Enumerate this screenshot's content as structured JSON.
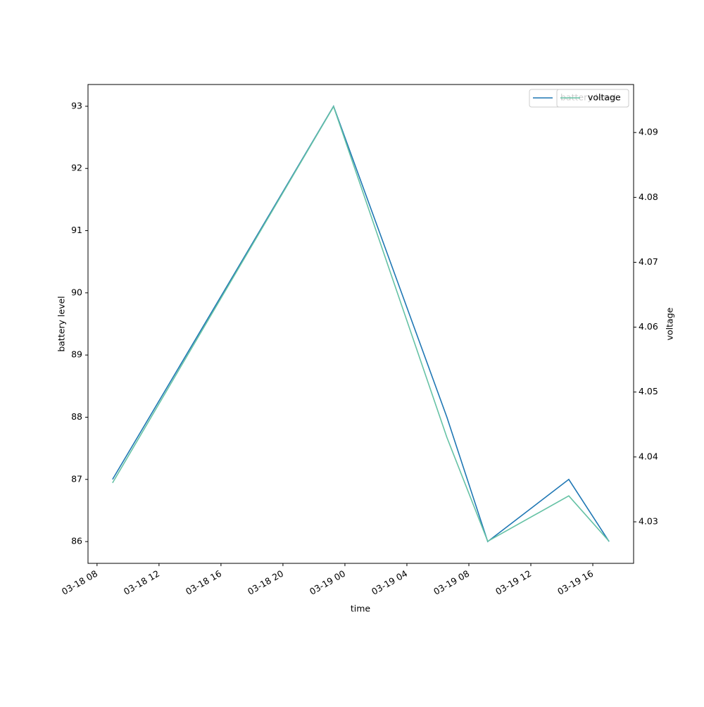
{
  "chart_data": {
    "type": "line",
    "xlabel": "time",
    "ylabel": "battery level",
    "y2label": "voltage",
    "x": [
      "03-18 09:00",
      "03-18 23:16",
      "03-19 06:35",
      "03-19 09:13",
      "03-19 14:27",
      "03-19 17:03"
    ],
    "series": [
      {
        "name": "battery level",
        "color": "#1f77b4",
        "values": [
          87,
          93,
          88,
          86,
          87,
          86
        ]
      },
      {
        "name": "voltage",
        "color": "#66c2a5",
        "axis": "y2",
        "values": [
          4.036,
          4.094,
          4.043,
          4.027,
          4.034,
          4.027
        ]
      }
    ],
    "xlim": [
      "03-18 07:25",
      "03-19 18:38"
    ],
    "xticks": [
      {
        "value": "03-18 08:00",
        "label": "03-18 08"
      },
      {
        "value": "03-18 12:00",
        "label": "03-18 12"
      },
      {
        "value": "03-18 16:00",
        "label": "03-18 16"
      },
      {
        "value": "03-18 20:00",
        "label": "03-18 20"
      },
      {
        "value": "03-19 00:00",
        "label": "03-19 00"
      },
      {
        "value": "03-19 04:00",
        "label": "03-19 04"
      },
      {
        "value": "03-19 08:00",
        "label": "03-19 08"
      },
      {
        "value": "03-19 12:00",
        "label": "03-19 12"
      },
      {
        "value": "03-19 16:00",
        "label": "03-19 16"
      }
    ],
    "ylim": [
      85.65,
      93.35
    ],
    "yticks": [
      86,
      87,
      88,
      89,
      90,
      91,
      92,
      93
    ],
    "y2lim": [
      4.0236,
      4.0974
    ],
    "y2ticks": [
      4.03,
      4.04,
      4.05,
      4.06,
      4.07,
      4.08,
      4.09
    ],
    "legend": "upper right"
  }
}
